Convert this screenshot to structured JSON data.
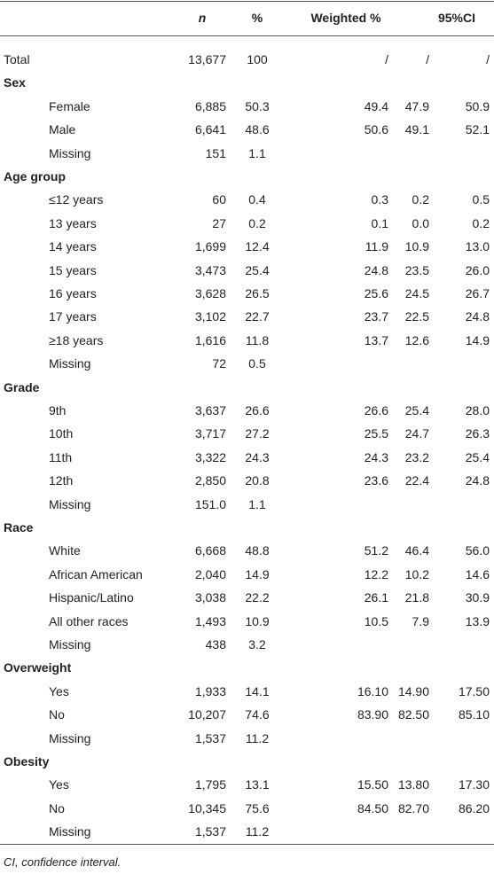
{
  "table": {
    "header": {
      "n": "n",
      "pct": "%",
      "w": "Weighted %",
      "ci": "95%CI"
    },
    "rows": [
      {
        "label": "Total",
        "n": "13,677",
        "pct": "100",
        "w": "/",
        "lo": "/",
        "hi": "/"
      },
      {
        "section": "Sex"
      },
      {
        "label": "Female",
        "n": "6,885",
        "pct": "50.3",
        "w": "49.4",
        "lo": "47.9",
        "hi": "50.9"
      },
      {
        "label": "Male",
        "n": "6,641",
        "pct": "48.6",
        "w": "50.6",
        "lo": "49.1",
        "hi": "52.1"
      },
      {
        "label": "Missing",
        "n": "151",
        "pct": "1.1"
      },
      {
        "section": "Age group"
      },
      {
        "label": "≤12 years",
        "n": "60",
        "pct": "0.4",
        "w": "0.3",
        "lo": "0.2",
        "hi": "0.5"
      },
      {
        "label": "13 years",
        "n": "27",
        "pct": "0.2",
        "w": "0.1",
        "lo": "0.0",
        "hi": "0.2"
      },
      {
        "label": "14 years",
        "n": "1,699",
        "pct": "12.4",
        "w": "11.9",
        "lo": "10.9",
        "hi": "13.0"
      },
      {
        "label": "15 years",
        "n": "3,473",
        "pct": "25.4",
        "w": "24.8",
        "lo": "23.5",
        "hi": "26.0"
      },
      {
        "label": "16 years",
        "n": "3,628",
        "pct": "26.5",
        "w": "25.6",
        "lo": "24.5",
        "hi": "26.7"
      },
      {
        "label": "17 years",
        "n": "3,102",
        "pct": "22.7",
        "w": "23.7",
        "lo": "22.5",
        "hi": "24.8"
      },
      {
        "label": "≥18 years",
        "n": "1,616",
        "pct": "11.8",
        "w": "13.7",
        "lo": "12.6",
        "hi": "14.9"
      },
      {
        "label": "Missing",
        "n": "72",
        "pct": "0.5"
      },
      {
        "section": "Grade"
      },
      {
        "label": "9th",
        "n": "3,637",
        "pct": "26.6",
        "w": "26.6",
        "lo": "25.4",
        "hi": "28.0"
      },
      {
        "label": "10th",
        "n": "3,717",
        "pct": "27.2",
        "w": "25.5",
        "lo": "24.7",
        "hi": "26.3"
      },
      {
        "label": "11th",
        "n": "3,322",
        "pct": "24.3",
        "w": "24.3",
        "lo": "23.2",
        "hi": "25.4"
      },
      {
        "label": "12th",
        "n": "2,850",
        "pct": "20.8",
        "w": "23.6",
        "lo": "22.4",
        "hi": "24.8"
      },
      {
        "label": "Missing",
        "n": "151.0",
        "pct": "1.1"
      },
      {
        "section": "Race"
      },
      {
        "label": "White",
        "n": "6,668",
        "pct": "48.8",
        "w": "51.2",
        "lo": "46.4",
        "hi": "56.0"
      },
      {
        "label": "African American",
        "n": "2,040",
        "pct": "14.9",
        "w": "12.2",
        "lo": "10.2",
        "hi": "14.6"
      },
      {
        "label": "Hispanic/Latino",
        "n": "3,038",
        "pct": "22.2",
        "w": "26.1",
        "lo": "21.8",
        "hi": "30.9"
      },
      {
        "label": "All other races",
        "n": "1,493",
        "pct": "10.9",
        "w": "10.5",
        "lo": "7.9",
        "hi": "13.9"
      },
      {
        "label": "Missing",
        "n": "438",
        "pct": "3.2"
      },
      {
        "section": "Overweight"
      },
      {
        "label": "Yes",
        "n": "1,933",
        "pct": "14.1",
        "w": "16.10",
        "lo": "14.90",
        "hi": "17.50"
      },
      {
        "label": "No",
        "n": "10,207",
        "pct": "74.6",
        "w": "83.90",
        "lo": "82.50",
        "hi": "85.10"
      },
      {
        "label": "Missing",
        "n": "1,537",
        "pct": "11.2"
      },
      {
        "section": "Obesity"
      },
      {
        "label": "Yes",
        "n": "1,795",
        "pct": "13.1",
        "w": "15.50",
        "lo": "13.80",
        "hi": "17.30"
      },
      {
        "label": "No",
        "n": "10,345",
        "pct": "75.6",
        "w": "84.50",
        "lo": "82.70",
        "hi": "86.20"
      },
      {
        "label": "Missing",
        "n": "1,537",
        "pct": "11.2"
      }
    ],
    "footnote": "CI, confidence interval."
  }
}
